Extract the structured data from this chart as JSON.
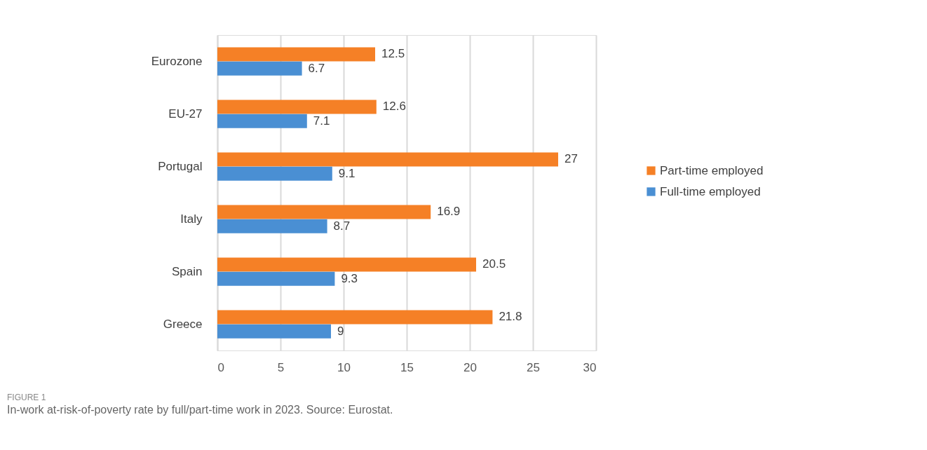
{
  "chart_data": {
    "type": "bar",
    "orientation": "horizontal",
    "categories": [
      "Eurozone",
      "EU-27",
      "Portugal",
      "Italy",
      "Spain",
      "Greece"
    ],
    "series": [
      {
        "name": "Part-time employed",
        "color": "#f58026",
        "values": [
          12.5,
          12.6,
          27,
          16.9,
          20.5,
          21.8
        ]
      },
      {
        "name": "Full-time employed",
        "color": "#4a8fd3",
        "values": [
          6.7,
          7.1,
          9.1,
          8.7,
          9.3,
          9
        ]
      }
    ],
    "xlim": [
      0,
      30
    ],
    "xticks": [
      0,
      5,
      10,
      15,
      20,
      25,
      30
    ],
    "grid": "x",
    "legend": "right",
    "data_labels": true,
    "annotations": [
      "FIGURE 1",
      "In-work at-risk-of-poverty rate by full/part-time work in 2023. Source: Eurostat."
    ]
  }
}
